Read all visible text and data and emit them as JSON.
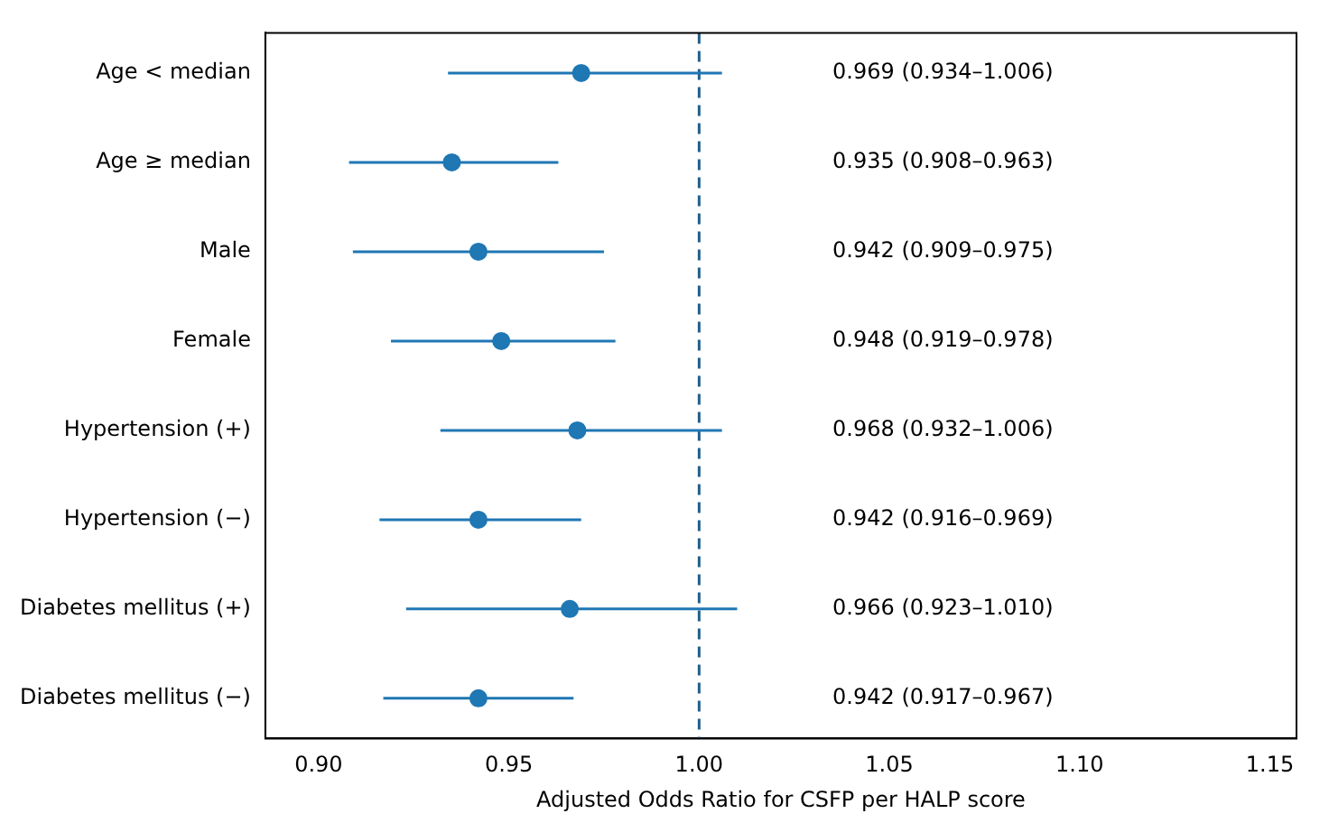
{
  "chart_data": {
    "type": "scatter",
    "orientation": "horizontal",
    "xlabel": "Adjusted Odds Ratio for CSFP per HALP score",
    "categories": [
      "Age < median",
      "Age ≥ median",
      "Male",
      "Female",
      "Hypertension (+)",
      "Hypertension (−)",
      "Diabetes mellitus (+)",
      "Diabetes mellitus (−)"
    ],
    "values": [
      0.969,
      0.935,
      0.942,
      0.948,
      0.968,
      0.942,
      0.966,
      0.942
    ],
    "errors": [
      [
        0.934,
        1.006
      ],
      [
        0.908,
        0.963
      ],
      [
        0.909,
        0.975
      ],
      [
        0.919,
        0.978
      ],
      [
        0.932,
        1.006
      ],
      [
        0.916,
        0.969
      ],
      [
        0.923,
        1.01
      ],
      [
        0.917,
        0.967
      ]
    ],
    "annotations": [
      "0.969 (0.934–1.006)",
      "0.935 (0.908–0.963)",
      "0.942 (0.909–0.975)",
      "0.948 (0.919–0.978)",
      "0.968 (0.932–1.006)",
      "0.942 (0.916–0.969)",
      "0.966 (0.923–1.010)",
      "0.942 (0.917–0.967)"
    ],
    "color": "#1f77b4",
    "marker": "circle",
    "xlim": [
      0.886,
      1.157
    ],
    "xticks": [
      {
        "value": 0.9,
        "label": "0.90"
      },
      {
        "value": 0.95,
        "label": "0.95"
      },
      {
        "value": 1.0,
        "label": "1.00"
      },
      {
        "value": 1.05,
        "label": "1.05"
      },
      {
        "value": 1.1,
        "label": "1.10"
      },
      {
        "value": 1.15,
        "label": "1.15"
      }
    ],
    "ref_lines": [
      {
        "axis": "x",
        "value": 1.0,
        "color": "#1f5f8b",
        "line_style": "dashed"
      }
    ],
    "grid": false,
    "legend": false
  }
}
